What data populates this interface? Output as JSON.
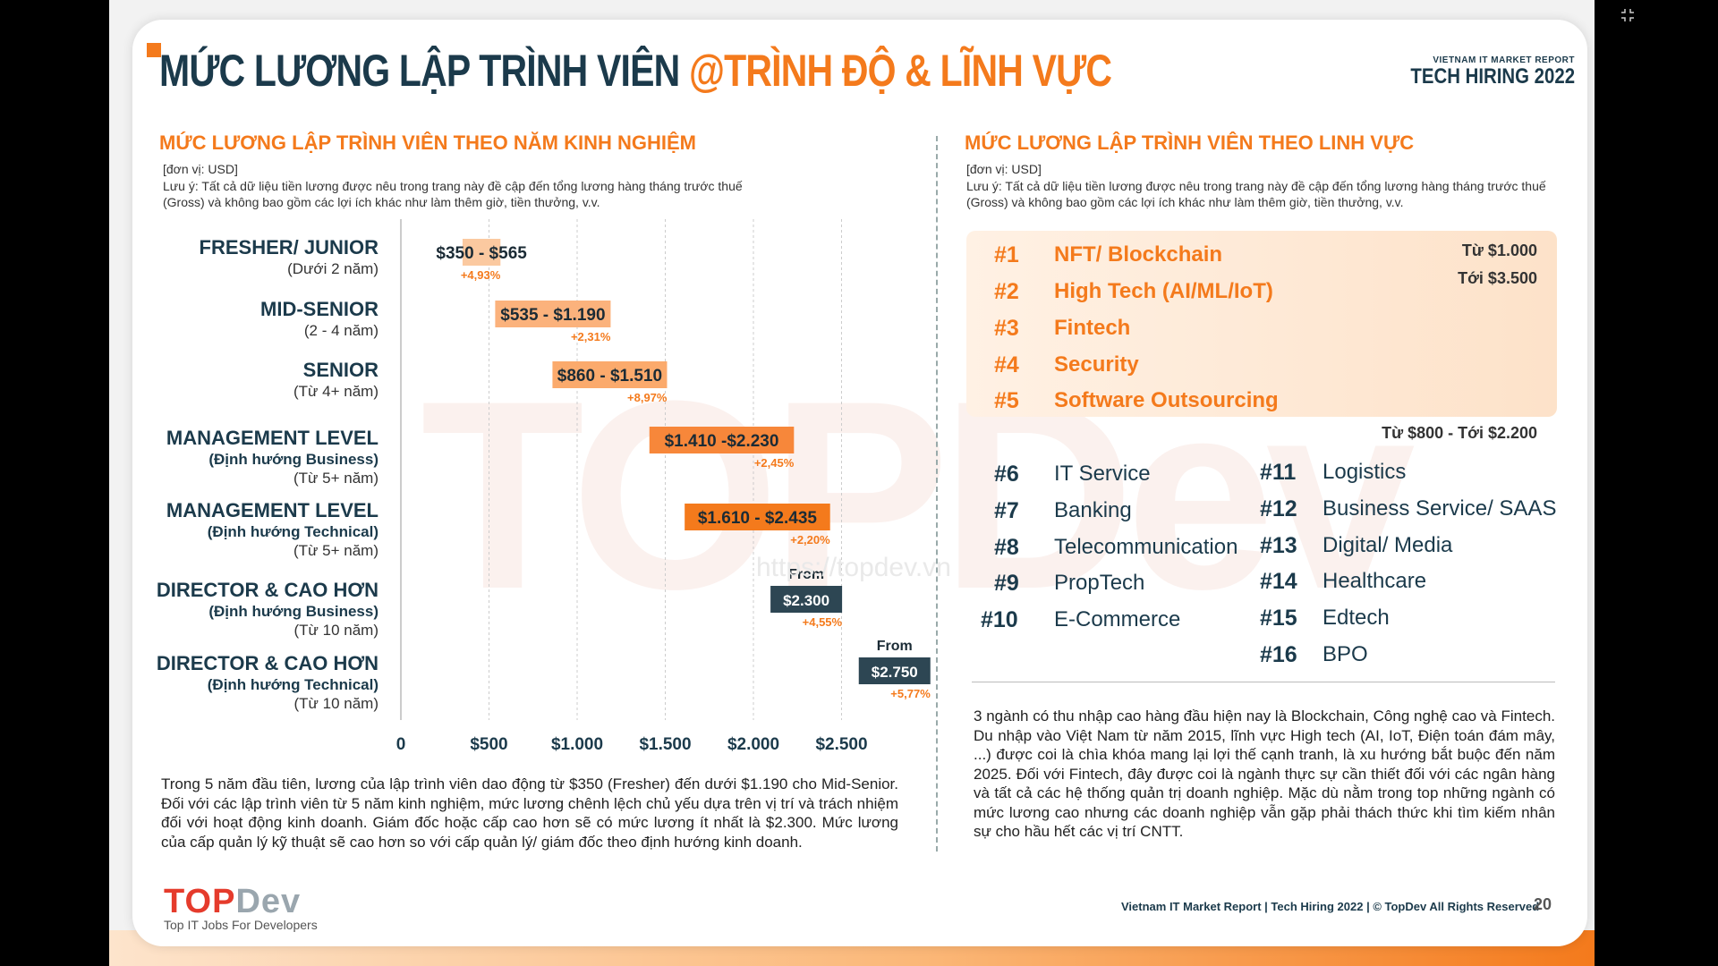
{
  "header": {
    "title_main": "MỨC LƯƠNG LẬP TRÌNH VIÊN ",
    "title_highlight": "@TRÌNH ĐỘ & LĨNH VỰC",
    "brand_small": "VIETNAM IT MARKET REPORT",
    "brand_big": "TECH HIRING 2022"
  },
  "left": {
    "section_title": "MỨC LƯƠNG LẬP TRÌNH VIÊN THEO NĂM KINH NGHIỆM",
    "unit": "[đơn vị: USD]",
    "note": "Lưu ý: Tất cả dữ liệu tiền lương được nêu trong trang này đề cập đến tổng lương hàng tháng trước thuế (Gross) và không bao gồm các lợi ích khác như làm thêm giờ, tiền thưởng, v.v.",
    "paragraph": "Trong 5 năm đầu tiên, lương của lập trình viên dao động từ $350 (Fresher) đến dưới $1.190 cho Mid-Senior. Đối với các lập trình viên từ 5 năm kinh nghiệm, mức lương chênh lệch chủ yếu dựa trên vị trí và trách nhiệm đối với hoạt động kinh doanh. Giám đốc hoặc cấp cao hơn sẽ có mức lương ít nhất là $2.300. Mức lương của cấp quản lý kỹ thuật sẽ cao hơn so với cấp quản lý/ giám đốc theo định hướng kinh doanh."
  },
  "chart_data": {
    "type": "bar",
    "orientation": "horizontal-range",
    "xlim": [
      0,
      2750
    ],
    "x_ticks": [
      {
        "value": 0,
        "label": "0"
      },
      {
        "value": 500,
        "label": "$500"
      },
      {
        "value": 1000,
        "label": "$1.000"
      },
      {
        "value": 1500,
        "label": "$1.500"
      },
      {
        "value": 2000,
        "label": "$2.000"
      },
      {
        "value": 2500,
        "label": "$2.500"
      }
    ],
    "grid": true,
    "rows": [
      {
        "l1": "FRESHER/ JUNIOR",
        "l2": "",
        "l3": "(Dưới 2 năm)",
        "min": 350,
        "max": 565,
        "label": "$350 - $565",
        "growth": "+4,93%",
        "color": "#fbc9a0",
        "text_color": "#1b2b35",
        "from": ""
      },
      {
        "l1": "MID-SENIOR",
        "l2": "",
        "l3": "(2 - 4 năm)",
        "min": 535,
        "max": 1190,
        "label": "$535 - $1.190",
        "growth": "+2,31%",
        "color": "#fbb27c",
        "text_color": "#1b2b35",
        "from": ""
      },
      {
        "l1": "SENIOR",
        "l2": "",
        "l3": "(Từ 4+ năm)",
        "min": 860,
        "max": 1510,
        "label": "$860 - $1.510",
        "growth": "+8,97%",
        "color": "#fbaa6c",
        "text_color": "#1b2b35",
        "from": ""
      },
      {
        "l1": "MANAGEMENT LEVEL",
        "l2": "(Định hướng Business)",
        "l3": "(Từ 5+ năm)",
        "min": 1410,
        "max": 2230,
        "label": "$1.410 -$2.230",
        "growth": "+2,45%",
        "color": "#f7873a",
        "text_color": "#1b2b35",
        "from": ""
      },
      {
        "l1": "MANAGEMENT LEVEL",
        "l2": "(Định hướng Technical)",
        "l3": "(Từ 5+ năm)",
        "min": 1610,
        "max": 2435,
        "label": "$1.610 - $2.435",
        "growth": "+2,20%",
        "color": "#f47a1c",
        "text_color": "#1b2b35",
        "from": ""
      },
      {
        "l1": "DIRECTOR & CAO HƠN",
        "l2": "(Định hướng Business)",
        "l3": "(Từ 10 năm)",
        "min": 2300,
        "max": null,
        "label": "$2.300",
        "growth": "+4,55%",
        "color": "#2d4653",
        "text_color": "#ffffff",
        "from": "From"
      },
      {
        "l1": "DIRECTOR & CAO HƠN",
        "l2": "(Định hướng Technical)",
        "l3": "(Từ 10 năm)",
        "min": 2750,
        "max": null,
        "label": "$2.750",
        "growth": "+5,77%",
        "color": "#2d4653",
        "text_color": "#ffffff",
        "from": "From"
      }
    ]
  },
  "right": {
    "section_title": "MỨC LƯƠNG LẬP TRÌNH VIÊN THEO LINH VỰC",
    "unit": "[đơn vị: USD]",
    "note": "Lưu ý: Tất cả dữ liệu tiền lương được nêu trong trang này đề cập đến tổng lương hàng tháng trước thuế (Gross) và không bao gồm các lợi ích khác như làm thêm giờ, tiền thưởng, v.v.",
    "top_range_from": "Từ $1.000",
    "top_range_to": "Tới $3.500",
    "mid_range": "Từ $800 - Tới $2.200",
    "top5": [
      {
        "rank": "#1",
        "name": "NFT/ Blockchain"
      },
      {
        "rank": "#2",
        "name": "High Tech (AI/ML/IoT)"
      },
      {
        "rank": "#3",
        "name": "Fintech"
      },
      {
        "rank": "#4",
        "name": "Security"
      },
      {
        "rank": "#5",
        "name": "Software Outsourcing"
      }
    ],
    "col_a": [
      {
        "rank": "#6",
        "name": "IT Service"
      },
      {
        "rank": "#7",
        "name": "Banking"
      },
      {
        "rank": "#8",
        "name": "Telecommunication"
      },
      {
        "rank": "#9",
        "name": "PropTech"
      },
      {
        "rank": "#10",
        "name": "E-Commerce"
      }
    ],
    "col_b": [
      {
        "rank": "#11",
        "name": "Logistics"
      },
      {
        "rank": "#12",
        "name": "Business Service/ SAAS"
      },
      {
        "rank": "#13",
        "name": "Digital/ Media"
      },
      {
        "rank": "#14",
        "name": "Healthcare"
      },
      {
        "rank": "#15",
        "name": "Edtech"
      },
      {
        "rank": "#16",
        "name": "BPO"
      }
    ],
    "paragraph": "3 ngành có thu nhập cao hàng đầu hiện nay là Blockchain, Công nghệ cao và Fintech. Du nhập vào Việt Nam từ năm 2015, lĩnh vực High tech (AI, IoT, Điện toán đám mây, ...) được coi là chìa khóa mang lại lợi thế cạnh tranh, là xu hướng bắt buộc đến năm 2025. Đối với Fintech, đây được coi là ngành thực sự cần thiết đối với các ngân hàng và tất cả các hệ thống quản trị doanh nghiệp. Mặc dù nằm trong top những ngành có mức lương cao nhưng các doanh nghiệp vẫn gặp phải thách thức khi tìm kiếm nhân sự cho hầu hết các vị trí CNTT."
  },
  "footer": {
    "logo_t": "T",
    "logo_o": "O",
    "logo_p": "P",
    "logo_dev": "Dev",
    "tagline": "Top IT Jobs For Developers",
    "text": "Vietnam IT Market Report | Tech Hiring 2022 | © TopDev All Rights Reserved",
    "page": "20"
  },
  "watermark": "https://topdev.vn",
  "colors": {
    "accent": "#f47a1c",
    "navy": "#1b3a4b",
    "dark_bar": "#2d4653"
  }
}
